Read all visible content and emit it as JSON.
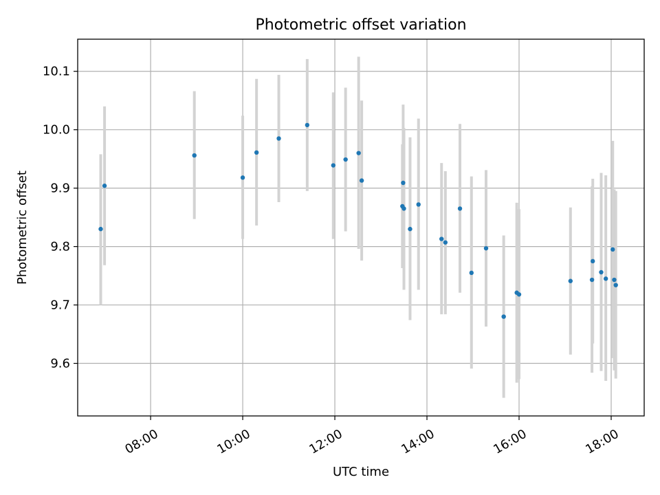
{
  "chart_data": {
    "type": "scatter",
    "title": "Photometric offset variation",
    "xlabel": "UTC time",
    "ylabel": "Photometric offset",
    "xlim": [
      "06:25",
      "18:43"
    ],
    "ylim": [
      9.51,
      10.155
    ],
    "x_ticks": [
      "08:00",
      "10:00",
      "12:00",
      "14:00",
      "16:00",
      "18:00"
    ],
    "y_ticks": [
      "9.6",
      "9.7",
      "9.8",
      "9.9",
      "10.0",
      "10.1"
    ],
    "grid": true,
    "colors": {
      "point": "#1f77b4",
      "errorbar": "#d3d3d3",
      "grid": "#b0b0b0"
    },
    "points": [
      {
        "time": "06:55",
        "y": 9.83,
        "err_low": 9.7,
        "err_high": 9.958
      },
      {
        "time": "07:00",
        "y": 9.904,
        "err_low": 9.768,
        "err_high": 10.04
      },
      {
        "time": "08:57",
        "y": 9.956,
        "err_low": 9.847,
        "err_high": 10.066
      },
      {
        "time": "10:00",
        "y": 9.918,
        "err_low": 9.813,
        "err_high": 10.024
      },
      {
        "time": "10:18",
        "y": 9.961,
        "err_low": 9.836,
        "err_high": 10.087
      },
      {
        "time": "10:47",
        "y": 9.985,
        "err_low": 9.876,
        "err_high": 10.094
      },
      {
        "time": "11:24",
        "y": 10.008,
        "err_low": 9.895,
        "err_high": 10.121
      },
      {
        "time": "11:58",
        "y": 9.939,
        "err_low": 9.813,
        "err_high": 10.064
      },
      {
        "time": "12:14",
        "y": 9.949,
        "err_low": 9.826,
        "err_high": 10.072
      },
      {
        "time": "12:31",
        "y": 9.96,
        "err_low": 9.796,
        "err_high": 10.125
      },
      {
        "time": "12:35",
        "y": 9.913,
        "err_low": 9.776,
        "err_high": 10.05
      },
      {
        "time": "13:28",
        "y": 9.869,
        "err_low": 9.763,
        "err_high": 9.975
      },
      {
        "time": "13:29",
        "y": 9.909,
        "err_low": 9.775,
        "err_high": 10.043
      },
      {
        "time": "13:30",
        "y": 9.865,
        "err_low": 9.726,
        "err_high": 10.003
      },
      {
        "time": "13:38",
        "y": 9.83,
        "err_low": 9.674,
        "err_high": 9.987
      },
      {
        "time": "13:49",
        "y": 9.872,
        "err_low": 9.726,
        "err_high": 10.019
      },
      {
        "time": "14:19",
        "y": 9.813,
        "err_low": 9.684,
        "err_high": 9.943
      },
      {
        "time": "14:24",
        "y": 9.807,
        "err_low": 9.684,
        "err_high": 9.929
      },
      {
        "time": "14:43",
        "y": 9.865,
        "err_low": 9.721,
        "err_high": 10.01
      },
      {
        "time": "14:58",
        "y": 9.755,
        "err_low": 9.591,
        "err_high": 9.92
      },
      {
        "time": "15:17",
        "y": 9.797,
        "err_low": 9.663,
        "err_high": 9.931
      },
      {
        "time": "15:40",
        "y": 9.68,
        "err_low": 9.541,
        "err_high": 9.819
      },
      {
        "time": "15:57",
        "y": 9.721,
        "err_low": 9.567,
        "err_high": 9.875
      },
      {
        "time": "16:00",
        "y": 9.718,
        "err_low": 9.573,
        "err_high": 9.864
      },
      {
        "time": "17:07",
        "y": 9.741,
        "err_low": 9.615,
        "err_high": 9.867
      },
      {
        "time": "17:35",
        "y": 9.743,
        "err_low": 9.584,
        "err_high": 9.903
      },
      {
        "time": "17:36",
        "y": 9.775,
        "err_low": 9.634,
        "err_high": 9.916
      },
      {
        "time": "17:47",
        "y": 9.756,
        "err_low": 9.587,
        "err_high": 9.926
      },
      {
        "time": "17:53",
        "y": 9.745,
        "err_low": 9.57,
        "err_high": 9.922
      },
      {
        "time": "18:02",
        "y": 9.795,
        "err_low": 9.609,
        "err_high": 9.981
      },
      {
        "time": "18:04",
        "y": 9.743,
        "err_low": 9.588,
        "err_high": 9.898
      },
      {
        "time": "18:06",
        "y": 9.734,
        "err_low": 9.574,
        "err_high": 9.895
      }
    ]
  }
}
